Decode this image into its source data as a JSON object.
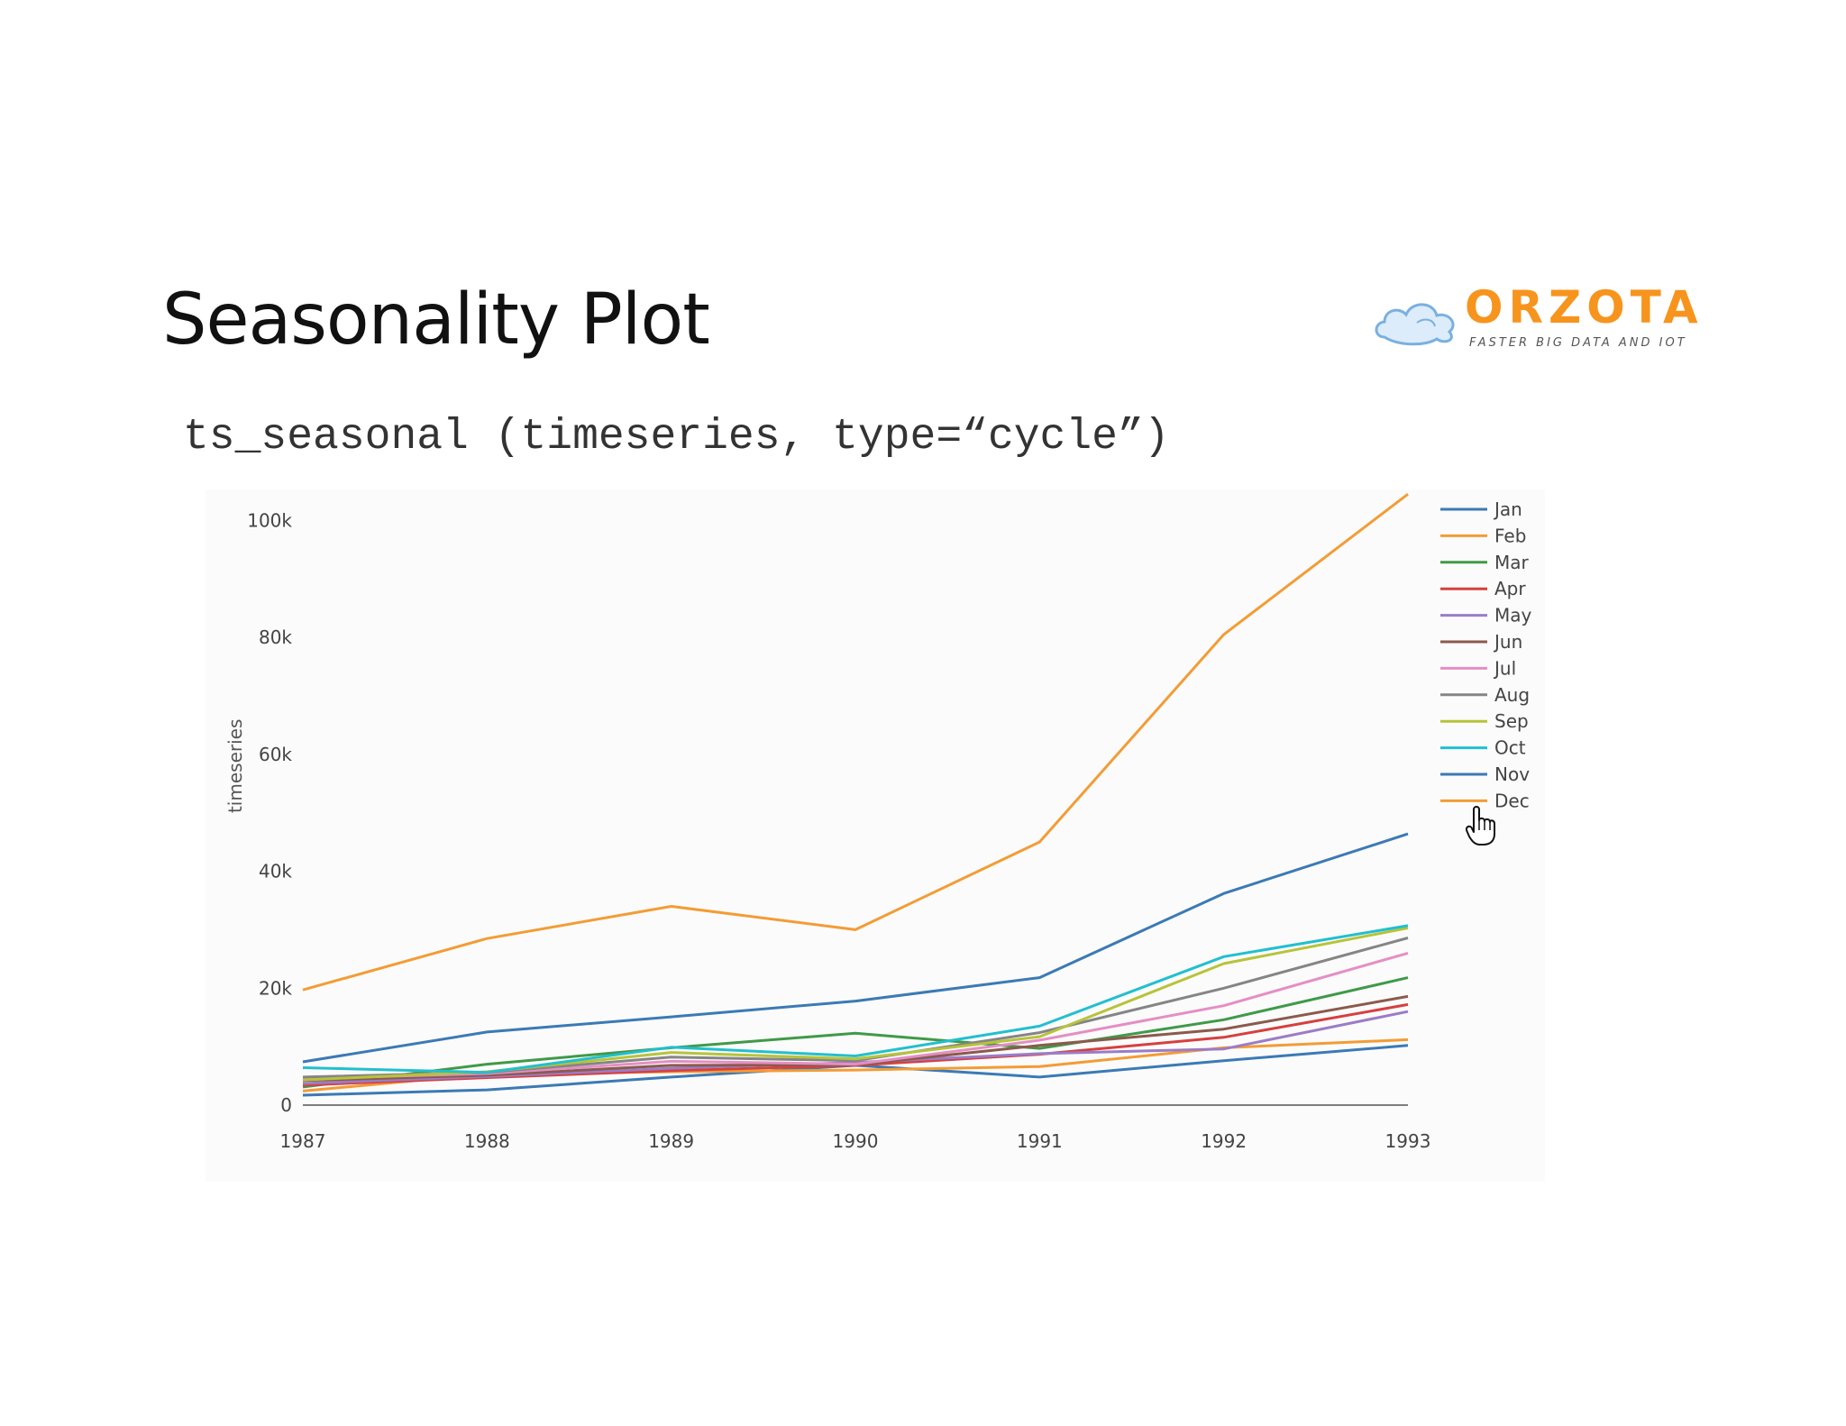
{
  "slide": {
    "title": "Seasonality Plot",
    "code": "ts_seasonal (timeseries, type=“cycle”)"
  },
  "logo": {
    "wordmark": "ORZOTA",
    "tagline": "FASTER BIG DATA AND IOT",
    "color": "#f7941d"
  },
  "cursor_icon": "hand-pointer-icon",
  "chart_data": {
    "type": "line",
    "title": "",
    "xlabel": "",
    "ylabel": "timeseries",
    "x": [
      "1987",
      "1988",
      "1989",
      "1990",
      "1991",
      "1992",
      "1993"
    ],
    "ylim": [
      0,
      105000
    ],
    "yticks": [
      0,
      20000,
      40000,
      60000,
      80000,
      100000
    ],
    "ytick_labels": [
      "0",
      "20k",
      "40k",
      "60k",
      "80k",
      "100k"
    ],
    "grid": false,
    "legend_position": "right",
    "series": [
      {
        "name": "Jan",
        "color": "#3b7ab5",
        "values": [
          1700,
          2600,
          4800,
          6800,
          4800,
          7600,
          10200
        ]
      },
      {
        "name": "Feb",
        "color": "#f39c35",
        "values": [
          2400,
          5300,
          5700,
          6000,
          6600,
          9800,
          11200
        ]
      },
      {
        "name": "Mar",
        "color": "#3f9a48",
        "values": [
          3100,
          7000,
          9800,
          12300,
          9700,
          14600,
          21800
        ]
      },
      {
        "name": "Apr",
        "color": "#d6403f",
        "values": [
          3400,
          4700,
          5900,
          6800,
          8700,
          11600,
          17200
        ]
      },
      {
        "name": "May",
        "color": "#9b7cc7",
        "values": [
          3700,
          4900,
          6300,
          7300,
          8800,
          9600,
          16000
        ]
      },
      {
        "name": "Jun",
        "color": "#8b5a4c",
        "values": [
          4200,
          5100,
          6800,
          6900,
          10200,
          13000,
          18600
        ]
      },
      {
        "name": "Jul",
        "color": "#e58ec4",
        "values": [
          4500,
          5400,
          7500,
          7000,
          11100,
          17000,
          26000
        ]
      },
      {
        "name": "Aug",
        "color": "#858585",
        "values": [
          4800,
          5600,
          8200,
          7600,
          12400,
          20000,
          28600
        ]
      },
      {
        "name": "Sep",
        "color": "#b7c33a",
        "values": [
          4300,
          5700,
          9000,
          7900,
          11700,
          24200,
          30300
        ]
      },
      {
        "name": "Oct",
        "color": "#22bfcf",
        "values": [
          6400,
          5600,
          9900,
          8400,
          13500,
          25400,
          30700
        ]
      },
      {
        "name": "Nov",
        "color": "#3b7ab5",
        "values": [
          7400,
          12500,
          15100,
          17800,
          21800,
          36200,
          46400
        ]
      },
      {
        "name": "Dec",
        "color": "#f39c35",
        "values": [
          19700,
          28500,
          34000,
          30000,
          45000,
          80500,
          104500
        ]
      }
    ]
  }
}
